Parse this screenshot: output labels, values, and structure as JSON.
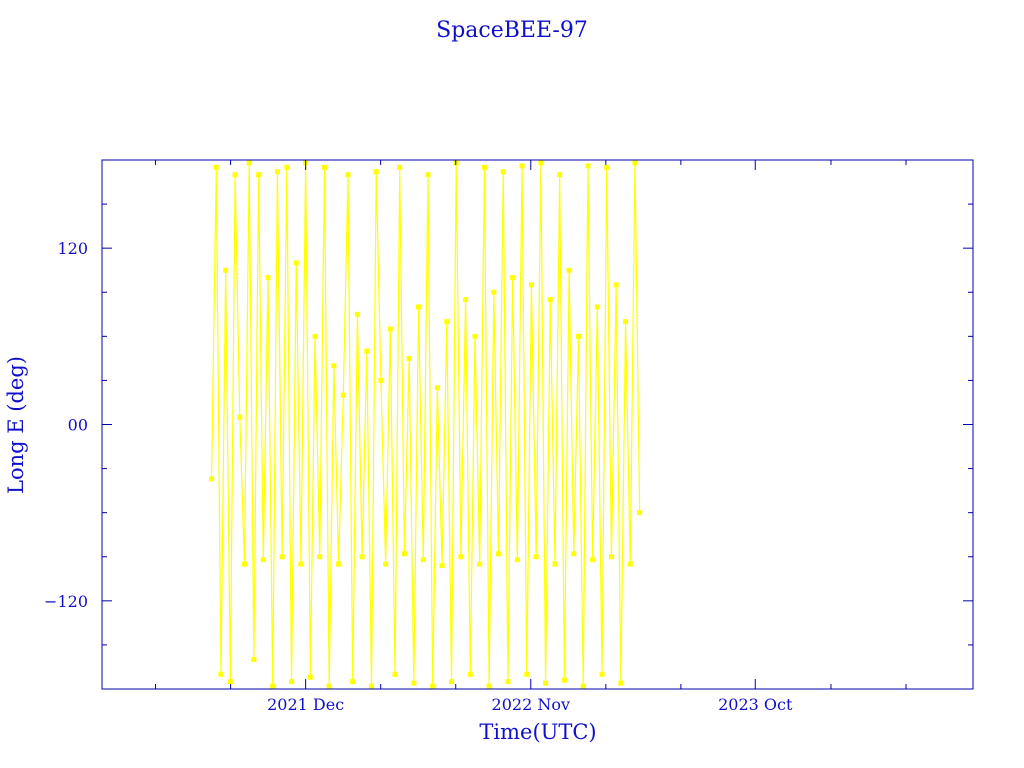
{
  "chart_data": {
    "type": "line",
    "title": "SpaceBEE-97",
    "xlabel": "Time(UTC)",
    "ylabel": "Long E (deg)",
    "xlim": [
      "2021-02-01",
      "2024-08-20"
    ],
    "ylim": [
      -180,
      180
    ],
    "x_ticks": [
      {
        "date": "2021-12-01",
        "label": "2021 Dec"
      },
      {
        "date": "2022-11-01",
        "label": "2022 Nov"
      },
      {
        "date": "2023-10-01",
        "label": "2023 Oct"
      }
    ],
    "y_ticks": [
      {
        "value": 120,
        "label": "120"
      },
      {
        "value": 0,
        "label": "00"
      },
      {
        "value": -120,
        "label": "−120"
      }
    ],
    "grid": false,
    "markers": "square",
    "colors": {
      "series": "#ffff00",
      "axes": "#0000aa",
      "text": "#1010c8"
    },
    "series": [
      {
        "x": [
          "2021-07-14",
          "2021-07-21",
          "2021-07-28",
          "2021-08-04",
          "2021-08-11",
          "2021-08-18",
          "2021-08-25",
          "2021-09-01",
          "2021-09-08",
          "2021-09-15",
          "2021-09-22",
          "2021-09-29",
          "2021-10-06",
          "2021-10-13",
          "2021-10-20",
          "2021-10-27",
          "2021-11-03",
          "2021-11-10",
          "2021-11-17",
          "2021-11-24",
          "2021-12-01",
          "2021-12-08",
          "2021-12-15",
          "2021-12-22",
          "2021-12-29",
          "2022-01-05",
          "2022-01-12",
          "2022-01-19",
          "2022-01-26",
          "2022-02-02",
          "2022-02-09",
          "2022-02-16",
          "2022-02-23",
          "2022-03-02",
          "2022-03-09",
          "2022-03-16",
          "2022-03-23",
          "2022-03-30",
          "2022-04-06",
          "2022-04-13",
          "2022-04-20",
          "2022-04-27",
          "2022-05-04",
          "2022-05-11",
          "2022-05-18",
          "2022-05-25",
          "2022-06-01",
          "2022-06-08",
          "2022-06-15",
          "2022-06-22",
          "2022-06-29",
          "2022-07-06",
          "2022-07-13",
          "2022-07-20",
          "2022-07-27",
          "2022-08-03",
          "2022-08-10",
          "2022-08-17",
          "2022-08-24",
          "2022-08-31",
          "2022-09-07",
          "2022-09-14",
          "2022-09-21",
          "2022-09-28",
          "2022-10-05",
          "2022-10-12",
          "2022-10-19",
          "2022-10-26",
          "2022-11-02",
          "2022-11-09",
          "2022-11-16",
          "2022-11-23",
          "2022-11-30",
          "2022-12-07",
          "2022-12-14",
          "2022-12-21",
          "2022-12-28",
          "2023-01-04",
          "2023-01-11",
          "2023-01-18",
          "2023-01-25",
          "2023-02-01",
          "2023-02-08",
          "2023-02-15",
          "2023-02-22",
          "2023-03-01",
          "2023-03-08",
          "2023-03-15",
          "2023-03-22",
          "2023-03-29",
          "2023-04-05",
          "2023-04-12"
        ],
        "y": [
          -37,
          175,
          -170,
          105,
          -175,
          170,
          5,
          -95,
          178,
          -160,
          170,
          -92,
          100,
          -178,
          172,
          -90,
          175,
          -175,
          110,
          -95,
          178,
          -172,
          60,
          -90,
          175,
          -178,
          40,
          -95,
          20,
          170,
          -175,
          75,
          -90,
          50,
          -178,
          172,
          30,
          -95,
          65,
          -170,
          175,
          -88,
          45,
          -176,
          80,
          -92,
          170,
          -178,
          25,
          -96,
          70,
          -175,
          178,
          -90,
          85,
          -170,
          60,
          -95,
          175,
          -178,
          90,
          -88,
          172,
          -175,
          100,
          -92,
          176,
          -170,
          95,
          -90,
          178,
          -176,
          85,
          -95,
          170,
          -174,
          105,
          -88,
          60,
          -178,
          176,
          -92,
          80,
          -170,
          175,
          -90,
          95,
          -176,
          70,
          -95,
          178,
          -60
        ]
      }
    ]
  }
}
